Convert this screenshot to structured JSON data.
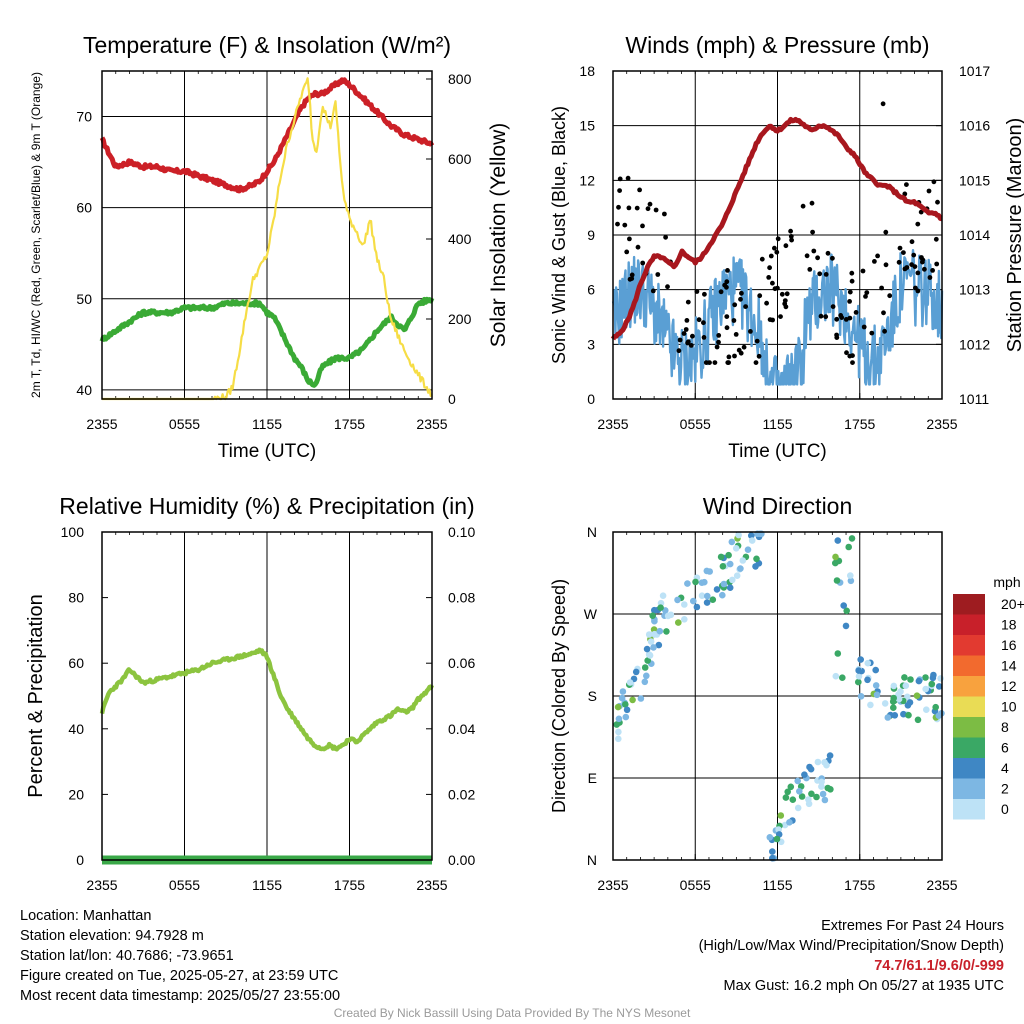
{
  "colors": {
    "temp_red": "#cc2027",
    "dewpoint_green": "#3aaa35",
    "insolation_yellow": "#f6dd46",
    "pressure_maroon": "#a8171e",
    "wind_blue": "#5a9fd4",
    "gust_black": "#000000",
    "humidity_green": "#8cc43f",
    "precip_green": "#3aa848"
  },
  "chart_data": [
    {
      "id": "temperature",
      "type": "line",
      "title": "Temperature (F) & Insolation (W/m²)",
      "xlabel": "Time (UTC)",
      "ylabel_left": "2m T, Td, HI/WC (Red, Green, Scarlet/Blue) & 9m T (Orange)",
      "ylabel_right": "Solar Insolation (Yellow)",
      "x_ticks": [
        "2355",
        "0555",
        "1155",
        "1755",
        "2355"
      ],
      "x_range_hours": [
        0,
        24
      ],
      "ylim_left": [
        39,
        75
      ],
      "yticks_left": [
        "40",
        "50",
        "60",
        "70"
      ],
      "ylim_right": [
        0,
        820
      ],
      "yticks_right": [
        "0",
        "200",
        "400",
        "600",
        "800"
      ],
      "series": [
        {
          "color": "temp_red",
          "axis": "left",
          "x": [
            0,
            0.5,
            1,
            2,
            3,
            4,
            5,
            6,
            7,
            8,
            9,
            10,
            11,
            11.5,
            12,
            12.5,
            13,
            13.5,
            14,
            14.5,
            15,
            15.5,
            16,
            16.5,
            17,
            17.5,
            18,
            19,
            20,
            21,
            22,
            23,
            24
          ],
          "values": [
            67.5,
            66,
            64.5,
            65,
            64.5,
            64.5,
            64,
            64,
            63.5,
            63,
            62.5,
            62,
            62.5,
            63,
            64,
            65,
            66.5,
            68,
            69.5,
            71,
            72,
            72.5,
            72.5,
            73,
            73.5,
            74,
            73.5,
            72,
            70.5,
            69,
            68,
            67.5,
            67
          ]
        },
        {
          "color": "dewpoint_green",
          "axis": "left",
          "x": [
            0,
            0.5,
            1,
            2,
            3,
            4,
            5,
            6,
            7,
            8,
            9,
            10,
            11,
            11.5,
            12,
            12.5,
            13,
            13.5,
            14,
            14.5,
            15,
            15.5,
            16,
            16.5,
            17,
            17.5,
            18,
            18.5,
            19,
            20,
            21,
            22,
            22.5,
            23,
            24
          ],
          "values": [
            45.5,
            46,
            46.5,
            47.5,
            48.5,
            48.5,
            48.5,
            49,
            49,
            49,
            49.5,
            49.5,
            49.5,
            49.5,
            48.5,
            48,
            46.5,
            45,
            43.5,
            42.5,
            41,
            40.5,
            42.5,
            43,
            43.5,
            43.5,
            43.5,
            44,
            44.5,
            46.5,
            48,
            46.5,
            48,
            49.5,
            50
          ]
        },
        {
          "color": "insolation_yellow",
          "axis": "right",
          "x": [
            0,
            2,
            4,
            6,
            8,
            9,
            9.5,
            10,
            10.5,
            11,
            11.5,
            12,
            12.5,
            13,
            13.5,
            14,
            14.5,
            15,
            15.3,
            15.6,
            16,
            16.3,
            16.6,
            17,
            17.3,
            17.6,
            18,
            18.5,
            19,
            19.5,
            20,
            20.5,
            21,
            22,
            23,
            24
          ],
          "values": [
            0,
            0,
            0,
            0,
            0,
            5,
            30,
            120,
            220,
            300,
            330,
            360,
            450,
            560,
            640,
            700,
            760,
            800,
            650,
            620,
            730,
            710,
            680,
            740,
            600,
            500,
            450,
            420,
            380,
            450,
            350,
            300,
            200,
            120,
            60,
            10
          ]
        }
      ]
    },
    {
      "id": "winds",
      "type": "line",
      "title": "Winds (mph) & Pressure (mb)",
      "xlabel": "Time (UTC)",
      "ylabel_left": "Sonic Wind & Gust (Blue, Black)",
      "ylabel_right": "Station Pressure (Maroon)",
      "x_ticks": [
        "2355",
        "0555",
        "1155",
        "1755",
        "2355"
      ],
      "x_range_hours": [
        0,
        24
      ],
      "ylim_left": [
        0,
        18
      ],
      "yticks_left": [
        "0",
        "3",
        "6",
        "9",
        "12",
        "15",
        "18"
      ],
      "ylim_right": [
        1011,
        1017
      ],
      "yticks_right": [
        "1011",
        "1012",
        "1013",
        "1014",
        "1015",
        "1016",
        "1017"
      ],
      "series": [
        {
          "color": "pressure_maroon",
          "axis": "right",
          "x": [
            0,
            0.5,
            1,
            1.5,
            2,
            2.5,
            3,
            3.5,
            4,
            4.5,
            5,
            5.5,
            6,
            6.5,
            7,
            7.5,
            8,
            8.5,
            9,
            9.5,
            10,
            10.5,
            11,
            11.5,
            12,
            12.5,
            13,
            13.5,
            14,
            14.5,
            15,
            15.5,
            16,
            16.5,
            17,
            17.5,
            18,
            18.5,
            19,
            19.5,
            20,
            20.5,
            21,
            21.5,
            22,
            22.5,
            23,
            23.5,
            24
          ],
          "values": [
            1012.1,
            1012.2,
            1012.4,
            1012.7,
            1013.1,
            1013.4,
            1013.6,
            1013.6,
            1013.5,
            1013.4,
            1013.7,
            1013.6,
            1013.5,
            1013.6,
            1013.8,
            1014.0,
            1014.2,
            1014.5,
            1014.8,
            1015.1,
            1015.4,
            1015.7,
            1015.9,
            1016.0,
            1015.9,
            1016.0,
            1016.1,
            1016.1,
            1016.0,
            1015.9,
            1016.0,
            1016.0,
            1015.9,
            1015.8,
            1015.6,
            1015.5,
            1015.3,
            1015.1,
            1015.0,
            1014.9,
            1014.9,
            1014.8,
            1014.7,
            1014.6,
            1014.6,
            1014.5,
            1014.4,
            1014.4,
            1014.3
          ]
        }
      ],
      "wind_band": {
        "color": "wind_blue",
        "low": 2,
        "high": 6,
        "peak_hour": 21,
        "peak_value": 8
      },
      "gust_points": {
        "color": "gust_black",
        "count": 170,
        "min": 2,
        "max": 16.2
      }
    },
    {
      "id": "humidity",
      "type": "line",
      "title": "Relative Humidity (%) & Precipitation (in)",
      "xlabel": "",
      "ylabel_left": "Percent & Precipitation",
      "x_ticks": [
        "2355",
        "0555",
        "1155",
        "1755",
        "2355"
      ],
      "x_range_hours": [
        0,
        24
      ],
      "ylim_left": [
        0,
        100
      ],
      "yticks_left": [
        "0",
        "20",
        "40",
        "60",
        "80",
        "100"
      ],
      "ylim_right": [
        0,
        0.1
      ],
      "yticks_right": [
        "0.00",
        "0.02",
        "0.04",
        "0.06",
        "0.08",
        "0.10"
      ],
      "series": [
        {
          "color": "humidity_green",
          "axis": "left",
          "x": [
            0,
            0.5,
            1,
            1.5,
            2,
            2.5,
            3,
            4,
            5,
            6,
            7,
            8,
            9,
            10,
            11,
            11.5,
            12,
            12.5,
            13,
            13.5,
            14,
            14.5,
            15,
            15.5,
            16,
            16.5,
            17,
            17.5,
            18,
            18.5,
            19,
            20,
            21,
            21.5,
            22,
            22.5,
            23,
            24
          ],
          "values": [
            45,
            51,
            53,
            55,
            58,
            56,
            54,
            55,
            56,
            57,
            58,
            60,
            61,
            62,
            63,
            64,
            62,
            56,
            50,
            46,
            43,
            40,
            37,
            35,
            34,
            35,
            34,
            35,
            37,
            36,
            38,
            42,
            44,
            46,
            45,
            46,
            49,
            53
          ]
        },
        {
          "color": "precip_green",
          "axis": "right",
          "x": [
            0,
            24
          ],
          "values": [
            0,
            0
          ]
        }
      ]
    },
    {
      "id": "wind_direction",
      "type": "scatter",
      "title": "Wind Direction",
      "ylabel_left": "Direction (Colored By Speed)",
      "x_ticks": [
        "2355",
        "0555",
        "1155",
        "1755",
        "2355"
      ],
      "x_range_hours": [
        0,
        24
      ],
      "y_ticks": [
        "N",
        "E",
        "S",
        "W",
        "N"
      ],
      "ylim_degrees": [
        0,
        360
      ],
      "trend": {
        "x": [
          0,
          1,
          2,
          3,
          4,
          5,
          6,
          7,
          8,
          9,
          10,
          11,
          11.5,
          12,
          13,
          14,
          15,
          16,
          16.5,
          17,
          18,
          19,
          20,
          21,
          22,
          23,
          24
        ],
        "degrees": [
          150,
          165,
          200,
          250,
          275,
          285,
          290,
          300,
          315,
          330,
          340,
          352,
          40,
          45,
          60,
          75,
          90,
          110,
          300,
          250,
          200,
          190,
          180,
          185,
          175,
          180,
          175
        ]
      },
      "legend": {
        "title": "mph",
        "labels": [
          "20+",
          "18",
          "16",
          "14",
          "12",
          "10",
          "8",
          "6",
          "4",
          "2",
          "0"
        ],
        "colors": [
          "#9e1c20",
          "#c8202a",
          "#e23a30",
          "#f26a2e",
          "#f8a23e",
          "#e9dc55",
          "#7cbc44",
          "#3aa865",
          "#3f87c4",
          "#7db7e3",
          "#bde2f6"
        ]
      }
    }
  ],
  "info_left": {
    "location": "Location: Manhattan",
    "elevation": "Station elevation: 94.7928 m",
    "latlon": "Station lat/lon: 40.7686; -73.9651",
    "created": "Figure created on Tue, 2025-05-27, at 23:59 UTC",
    "recent": "Most recent data timestamp: 2025/05/27 23:55:00"
  },
  "info_right": {
    "heading": "Extremes For Past 24 Hours",
    "subheading": "(High/Low/Max Wind/Precipitation/Snow Depth)",
    "values": "74.7/61.1/9.6/0/-999",
    "max_gust": "Max Gust: 16.2 mph On 05/27 at 1935 UTC"
  },
  "credit": "Created By Nick Bassill Using Data Provided By The NYS Mesonet"
}
